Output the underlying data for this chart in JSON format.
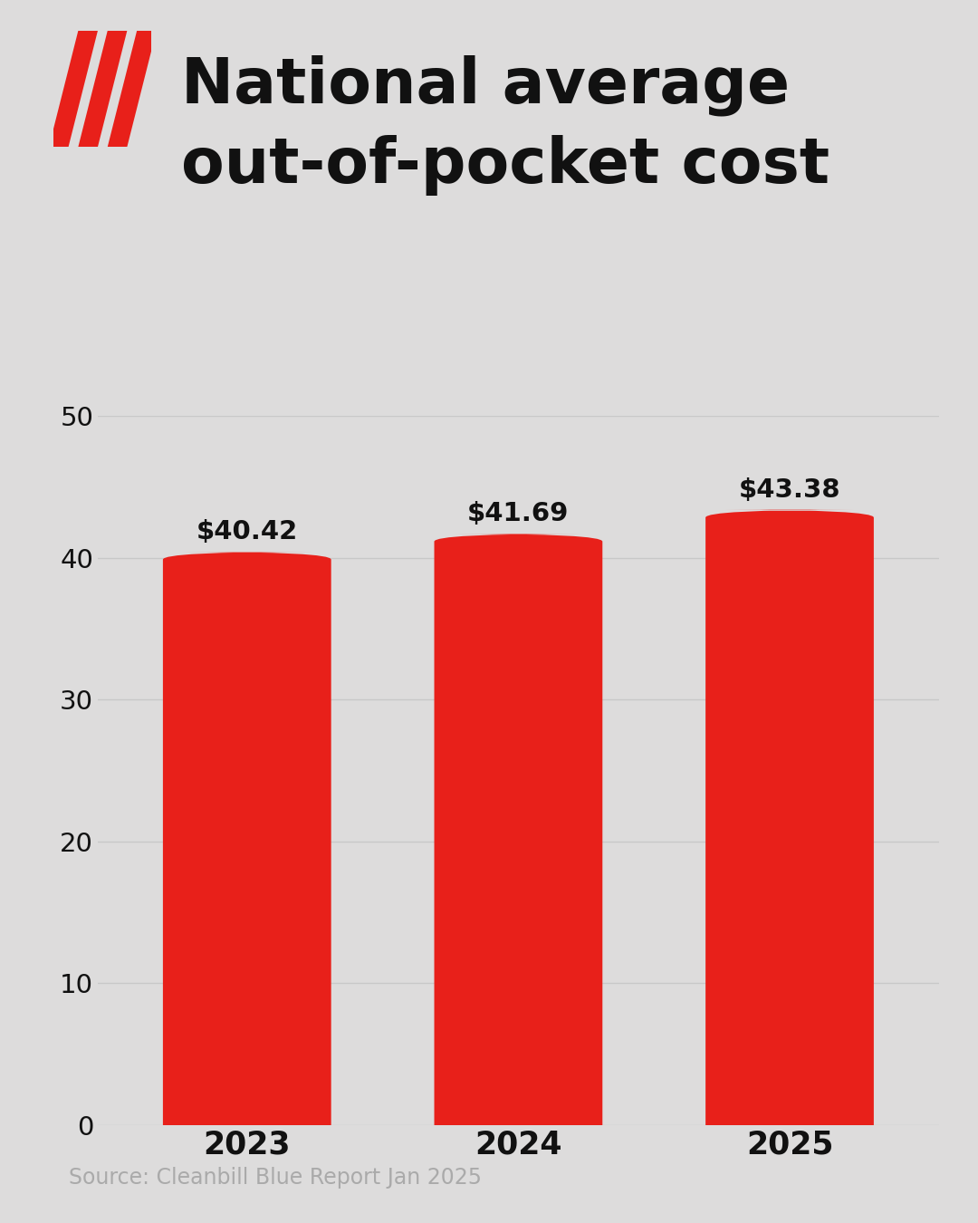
{
  "title_line1": "National average",
  "title_line2": "out-of-pocket cost",
  "categories": [
    "2023",
    "2024",
    "2025"
  ],
  "values": [
    40.42,
    41.69,
    43.38
  ],
  "labels": [
    "$40.42",
    "$41.69",
    "$43.38"
  ],
  "bar_color": "#E8201A",
  "background_color": "#DDDCDC",
  "ylim": [
    0,
    50
  ],
  "yticks": [
    0,
    10,
    20,
    30,
    40,
    50
  ],
  "source_text": "Source: Cleanbill Blue Report Jan 2025",
  "source_color": "#AAAAAA",
  "title_color": "#111111",
  "tick_label_color": "#111111",
  "grid_color": "#C8C8C8",
  "logo_color": "#E8201A"
}
